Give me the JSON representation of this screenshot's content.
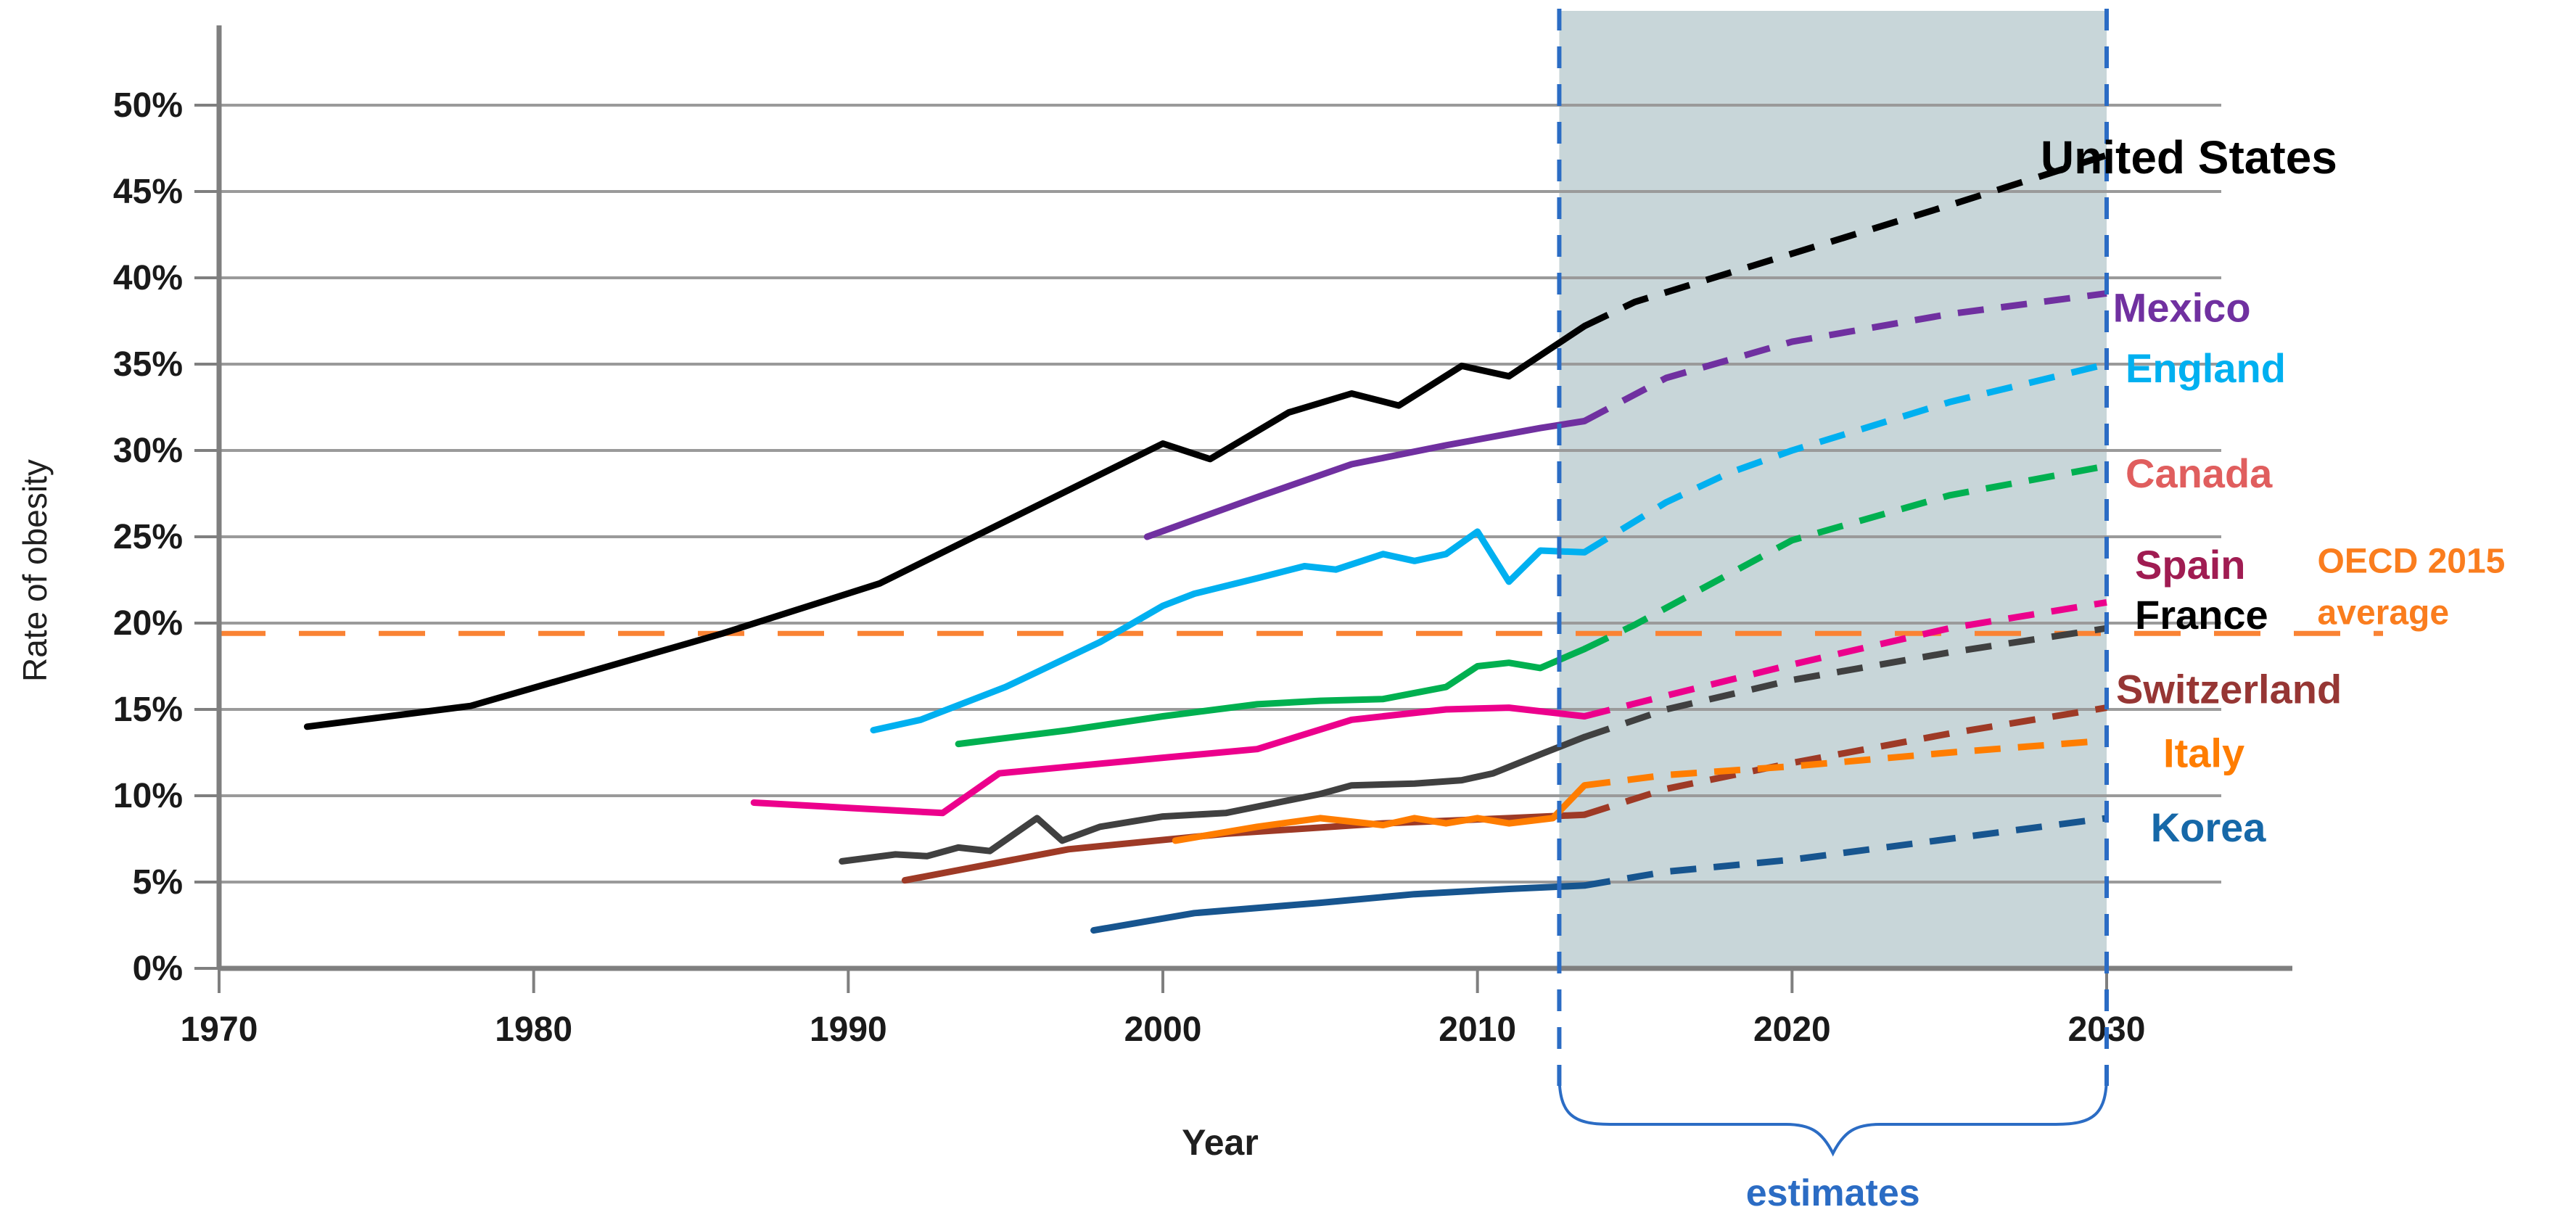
{
  "chart_data": {
    "type": "line",
    "title": "",
    "xlabel": "Year",
    "ylabel": "Rate of obesity",
    "x_ticks": [
      1970,
      1980,
      1990,
      2000,
      2010,
      2020,
      2030
    ],
    "y_ticks_pct": [
      0,
      5,
      10,
      15,
      20,
      25,
      30,
      35,
      40,
      45,
      50
    ],
    "xlim": [
      1970,
      2036.5
    ],
    "ylim": [
      0,
      50
    ],
    "grid": "horizontal",
    "tick_label_suffix": "%",
    "projection_band": {
      "from_year": 2012.6,
      "to_year": 2030,
      "fill": "#C8D6D9",
      "edge_color": "#2B6CC4",
      "edge_style": "dashed",
      "label": "estimates",
      "label_color": "#2B6CC4"
    },
    "reference_line": {
      "label_line1": "OECD 2015",
      "label_line2": "average",
      "value_pct": 19.4,
      "line_color": "#FA8334",
      "label_color": "#FA7D1E",
      "style": "dashed",
      "label_anchor": {
        "year": 2036.7,
        "pct_line1": 23.6,
        "pct_line2": 20.6
      }
    },
    "series": [
      {
        "name": "United States",
        "color": "#000000",
        "label_color": "#000000",
        "label_size": 64,
        "label_anchor": {
          "year": 2027.9,
          "pct": 46.9
        },
        "solid": [
          [
            1972.8,
            14.0
          ],
          [
            1978,
            15.2
          ],
          [
            1986,
            19.4
          ],
          [
            1991,
            22.3
          ],
          [
            2000,
            30.4
          ],
          [
            2001.5,
            29.5
          ],
          [
            2004,
            32.2
          ],
          [
            2006,
            33.3
          ],
          [
            2007.5,
            32.6
          ],
          [
            2009.5,
            34.9
          ],
          [
            2011,
            34.3
          ],
          [
            2013.4,
            37.2
          ]
        ],
        "projected": [
          [
            2013.4,
            37.2
          ],
          [
            2015,
            38.6
          ],
          [
            2020,
            41.4
          ],
          [
            2025,
            44.2
          ],
          [
            2030,
            47.1
          ]
        ]
      },
      {
        "name": "Mexico",
        "color": "#7030A0",
        "label_color": "#7030A0",
        "label_size": 56,
        "label_anchor": {
          "year": 2030.2,
          "pct": 38.3
        },
        "solid": [
          [
            1999.5,
            25.0
          ],
          [
            2003,
            27.3
          ],
          [
            2006,
            29.2
          ],
          [
            2009,
            30.3
          ],
          [
            2012,
            31.3
          ],
          [
            2013.4,
            31.7
          ]
        ],
        "projected": [
          [
            2013.4,
            31.7
          ],
          [
            2016,
            34.2
          ],
          [
            2020,
            36.3
          ],
          [
            2025,
            37.9
          ],
          [
            2030,
            39.1
          ]
        ]
      },
      {
        "name": "England",
        "color": "#00B0F0",
        "label_color": "#00B0F0",
        "label_size": 56,
        "label_anchor": {
          "year": 2030.6,
          "pct": 34.8
        },
        "solid": [
          [
            1990.8,
            13.8
          ],
          [
            1992.3,
            14.4
          ],
          [
            1995,
            16.3
          ],
          [
            1998,
            18.9
          ],
          [
            2000,
            21.0
          ],
          [
            2001,
            21.7
          ],
          [
            2003,
            22.6
          ],
          [
            2004.5,
            23.3
          ],
          [
            2005.5,
            23.1
          ],
          [
            2007,
            24.0
          ],
          [
            2008,
            23.6
          ],
          [
            2009,
            24.0
          ],
          [
            2010,
            25.3
          ],
          [
            2011,
            22.4
          ],
          [
            2012,
            24.2
          ],
          [
            2013.4,
            24.1
          ]
        ],
        "projected": [
          [
            2013.4,
            24.1
          ],
          [
            2016,
            27.0
          ],
          [
            2018,
            28.7
          ],
          [
            2020,
            30.0
          ],
          [
            2025,
            32.8
          ],
          [
            2030,
            35.0
          ]
        ]
      },
      {
        "name": "Canada",
        "color": "#00B050",
        "label_color": "#E05E5E",
        "label_size": 56,
        "label_anchor": {
          "year": 2030.6,
          "pct": 28.7
        },
        "solid": [
          [
            1993.5,
            13.0
          ],
          [
            1997,
            13.8
          ],
          [
            2000,
            14.6
          ],
          [
            2003,
            15.3
          ],
          [
            2005,
            15.5
          ],
          [
            2007,
            15.6
          ],
          [
            2009,
            16.3
          ],
          [
            2010,
            17.5
          ],
          [
            2011,
            17.7
          ],
          [
            2012,
            17.4
          ],
          [
            2013.4,
            18.5
          ]
        ],
        "projected": [
          [
            2013.4,
            18.5
          ],
          [
            2015,
            19.9
          ],
          [
            2020,
            24.8
          ],
          [
            2025,
            27.4
          ],
          [
            2030,
            29.1
          ]
        ]
      },
      {
        "name": "Spain",
        "color": "#EC008C",
        "label_color": "#A01C52",
        "label_size": 56,
        "label_anchor": {
          "year": 2030.9,
          "pct": 23.4
        },
        "solid": [
          [
            1987,
            9.6
          ],
          [
            1990,
            9.3
          ],
          [
            1993,
            9.0
          ],
          [
            1994.8,
            11.3
          ],
          [
            2000,
            12.2
          ],
          [
            2003,
            12.7
          ],
          [
            2006,
            14.4
          ],
          [
            2009,
            15.0
          ],
          [
            2011,
            15.1
          ],
          [
            2013.4,
            14.6
          ]
        ],
        "projected": [
          [
            2013.4,
            14.6
          ],
          [
            2016,
            15.8
          ],
          [
            2020,
            17.6
          ],
          [
            2025,
            19.7
          ],
          [
            2030,
            21.2
          ]
        ]
      },
      {
        "name": "France",
        "color": "#404040",
        "label_color": "#000000",
        "label_size": 56,
        "label_anchor": {
          "year": 2030.9,
          "pct": 20.5
        },
        "solid": [
          [
            1989.8,
            6.2
          ],
          [
            1991.5,
            6.6
          ],
          [
            1992.5,
            6.5
          ],
          [
            1993.5,
            7.0
          ],
          [
            1994.5,
            6.8
          ],
          [
            1996,
            8.7
          ],
          [
            1996.8,
            7.4
          ],
          [
            1998,
            8.2
          ],
          [
            2000,
            8.8
          ],
          [
            2002,
            9.0
          ],
          [
            2005,
            10.1
          ],
          [
            2006,
            10.6
          ],
          [
            2008,
            10.7
          ],
          [
            2009.5,
            10.9
          ],
          [
            2010.5,
            11.3
          ],
          [
            2012,
            12.4
          ],
          [
            2013.4,
            13.4
          ]
        ],
        "projected": [
          [
            2013.4,
            13.4
          ],
          [
            2016,
            15.0
          ],
          [
            2020,
            16.7
          ],
          [
            2025,
            18.3
          ],
          [
            2030,
            19.7
          ]
        ]
      },
      {
        "name": "Switzerland",
        "color": "#9E3A26",
        "label_color": "#963634",
        "label_size": 56,
        "label_anchor": {
          "year": 2030.3,
          "pct": 16.2
        },
        "solid": [
          [
            1991.8,
            5.1
          ],
          [
            1997,
            6.9
          ],
          [
            2002,
            7.8
          ],
          [
            2007,
            8.4
          ],
          [
            2011,
            8.7
          ],
          [
            2013.4,
            8.9
          ]
        ],
        "projected": [
          [
            2013.4,
            8.9
          ],
          [
            2016,
            10.4
          ],
          [
            2020,
            11.9
          ],
          [
            2025,
            13.6
          ],
          [
            2030,
            15.1
          ]
        ]
      },
      {
        "name": "Italy",
        "color": "#FF7D00",
        "label_color": "#FF7D00",
        "label_size": 56,
        "label_anchor": {
          "year": 2031.8,
          "pct": 12.5
        },
        "solid": [
          [
            2000.4,
            7.4
          ],
          [
            2003,
            8.2
          ],
          [
            2005,
            8.7
          ],
          [
            2007,
            8.3
          ],
          [
            2008,
            8.7
          ],
          [
            2009,
            8.4
          ],
          [
            2010,
            8.7
          ],
          [
            2011,
            8.4
          ],
          [
            2012.4,
            8.7
          ],
          [
            2013.4,
            10.6
          ]
        ],
        "projected": [
          [
            2013.4,
            10.6
          ],
          [
            2016,
            11.2
          ],
          [
            2020,
            11.7
          ],
          [
            2025,
            12.5
          ],
          [
            2030,
            13.2
          ]
        ]
      },
      {
        "name": "Korea",
        "color": "#17558F",
        "label_color": "#1668A8",
        "label_size": 56,
        "label_anchor": {
          "year": 2031.4,
          "pct": 8.2
        },
        "solid": [
          [
            1997.8,
            2.2
          ],
          [
            2001,
            3.2
          ],
          [
            2005,
            3.8
          ],
          [
            2008,
            4.3
          ],
          [
            2011,
            4.6
          ],
          [
            2013.4,
            4.8
          ]
        ],
        "projected": [
          [
            2013.4,
            4.8
          ],
          [
            2016,
            5.6
          ],
          [
            2020,
            6.3
          ],
          [
            2025,
            7.5
          ],
          [
            2030,
            8.7
          ]
        ]
      }
    ]
  }
}
